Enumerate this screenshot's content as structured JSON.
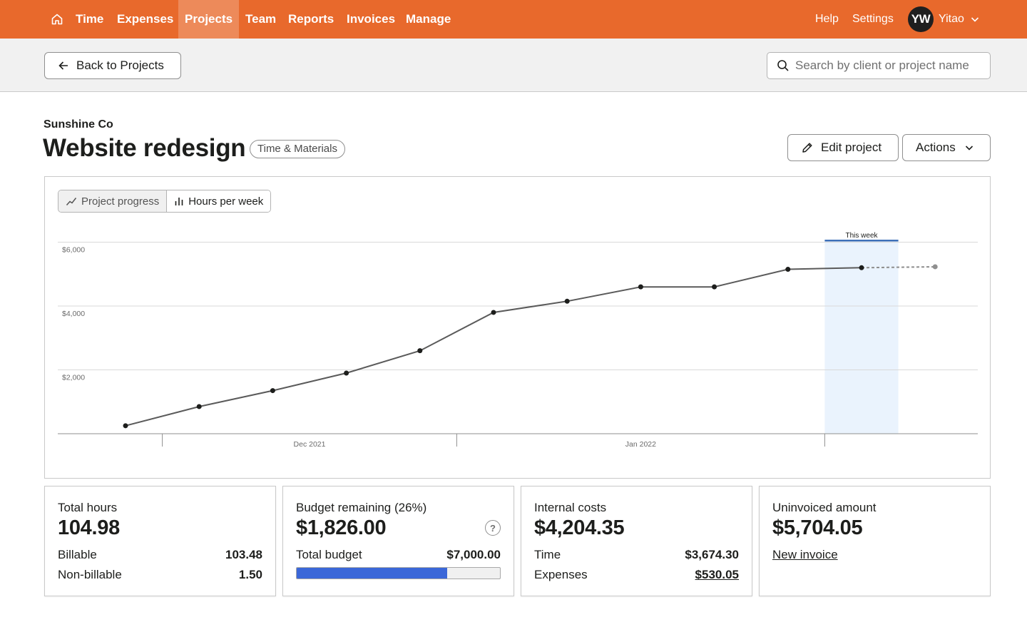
{
  "nav": {
    "items": [
      {
        "label": "Time",
        "name": "nav-time",
        "active": false
      },
      {
        "label": "Expenses",
        "name": "nav-expenses",
        "active": false
      },
      {
        "label": "Projects",
        "name": "nav-projects",
        "active": true
      },
      {
        "label": "Team",
        "name": "nav-team",
        "active": false
      },
      {
        "label": "Reports",
        "name": "nav-reports",
        "active": false
      },
      {
        "label": "Invoices",
        "name": "nav-invoices",
        "active": false
      },
      {
        "label": "Manage",
        "name": "nav-manage",
        "active": false
      }
    ],
    "help": "Help",
    "settings": "Settings",
    "user": {
      "initials": "YW",
      "name": "Yitao"
    }
  },
  "subbar": {
    "back_label": "Back to Projects",
    "search_placeholder": "Search by client or project name"
  },
  "project": {
    "client": "Sunshine Co",
    "title": "Website redesign",
    "type": "Time & Materials",
    "edit_label": "Edit project",
    "actions_label": "Actions"
  },
  "chart_toggle": {
    "progress_label": "Project progress",
    "hours_label": "Hours per week",
    "active": "progress"
  },
  "chart_data": {
    "type": "line",
    "y_ticks": [
      {
        "value": 2000,
        "label": "$2,000"
      },
      {
        "value": 4000,
        "label": "$4,000"
      },
      {
        "value": 6000,
        "label": "$6,000"
      }
    ],
    "ylim": [
      0,
      6000
    ],
    "x_labels": [
      {
        "label": "Dec 2021",
        "week": 2.5
      },
      {
        "label": "Jan 2022",
        "week": 7
      }
    ],
    "x_ticks": [
      0.5,
      4.5,
      9.5
    ],
    "highlight": {
      "label": "This week",
      "week": 10
    },
    "series": [
      {
        "values": [
          250,
          850,
          1350,
          1900,
          2600,
          3800,
          4150,
          4600,
          4600,
          5150,
          5200
        ],
        "style": "solid"
      },
      {
        "values_from_week": 10,
        "values": [
          5200,
          5230
        ],
        "style": "dashed"
      }
    ],
    "colors": {
      "line": "#5a5a5a",
      "projection": "#8f8f8f",
      "highlight": "#eaf3fd",
      "highlight_bar": "#3d6fb8"
    }
  },
  "cards": {
    "hours": {
      "label": "Total hours",
      "value": "104.98",
      "billable_label": "Billable",
      "billable_value": "103.48",
      "nonbillable_label": "Non-billable",
      "nonbillable_value": "1.50"
    },
    "budget": {
      "label": "Budget remaining (26%)",
      "value": "$1,826.00",
      "help": "?",
      "total_label": "Total budget",
      "total_value": "$7,000.00",
      "spent_fraction": 0.74
    },
    "costs": {
      "label": "Internal costs",
      "value": "$4,204.35",
      "time_label": "Time",
      "time_value": "$3,674.30",
      "expenses_label": "Expenses",
      "expenses_value": "$530.05"
    },
    "uninvoiced": {
      "label": "Uninvoiced amount",
      "value": "$5,704.05",
      "link_label": "New invoice"
    }
  },
  "colors": {
    "brand": "#e8692c",
    "budget_fill": "#3b67d8"
  }
}
